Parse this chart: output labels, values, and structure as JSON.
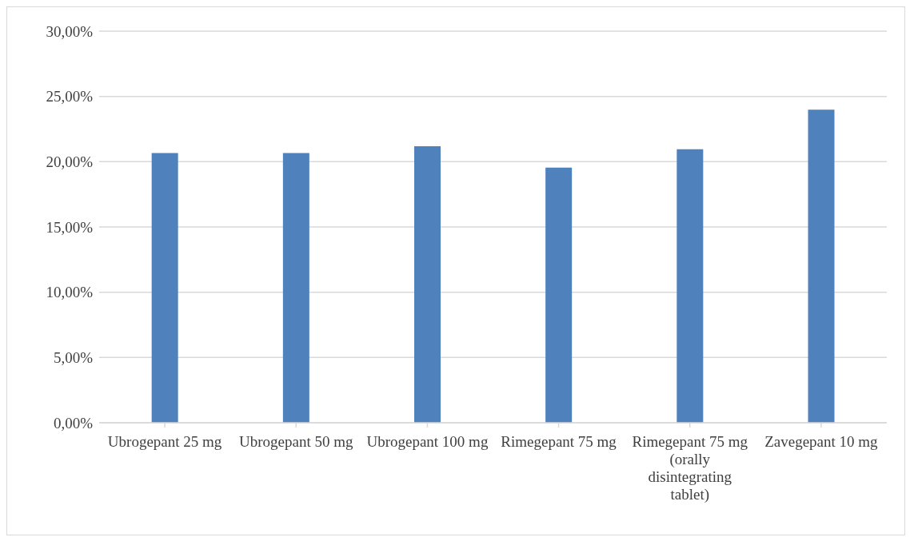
{
  "chart_data": {
    "type": "bar",
    "categories": [
      "Ubrogepant 25 mg",
      "Ubrogepant 50 mg",
      "Ubrogepant 100 mg",
      "Rimegepant 75 mg",
      "Rimegepant 75 mg (orally disintegrating tablet)",
      "Zavegepant 10 mg"
    ],
    "values": [
      20.66,
      20.66,
      21.19,
      19.55,
      20.95,
      23.99
    ],
    "color": "#4f81bd",
    "ylim": [
      0,
      30
    ],
    "yticks": [
      {
        "value": 0,
        "label": "0,00%"
      },
      {
        "value": 5,
        "label": "5,00%"
      },
      {
        "value": 10,
        "label": "10,00%"
      },
      {
        "value": 15,
        "label": "15,00%"
      },
      {
        "value": 20,
        "label": "20,00%"
      },
      {
        "value": 25,
        "label": "25,00%"
      },
      {
        "value": 30,
        "label": "30,00%"
      }
    ],
    "grid": "y",
    "legend": false
  }
}
